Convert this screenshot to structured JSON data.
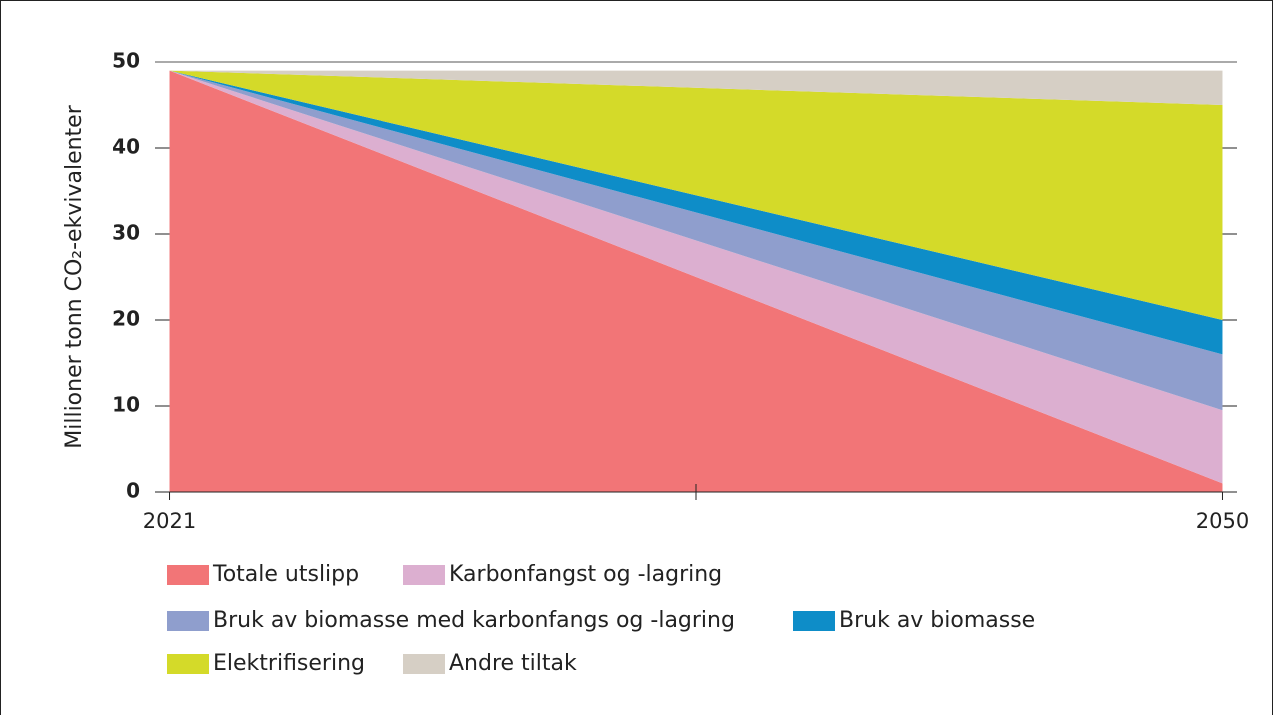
{
  "chart_data": {
    "type": "stacked_area",
    "y_label": "Millioner tonn CO₂-ekvivalenter",
    "x": [
      2021,
      2050
    ],
    "xlim": [
      2020.6,
      2050.4
    ],
    "xticks": [
      2021,
      2050
    ],
    "minor_xticks": [
      2035.5
    ],
    "ylim": [
      0,
      50
    ],
    "yticks": [
      0,
      10,
      20,
      30,
      40,
      50
    ],
    "series": [
      {
        "name": "Totale utslipp",
        "color": "#f27577",
        "values": [
          49,
          1
        ]
      },
      {
        "name": "Karbonfangst og -lagring",
        "color": "#dcafd0",
        "values": [
          0,
          8.5
        ]
      },
      {
        "name": "Bruk av biomasse med karbonfangs og -lagring",
        "color": "#8f9ecd",
        "values": [
          0,
          6.5
        ]
      },
      {
        "name": "Bruk av biomasse",
        "color": "#0e8dc8",
        "values": [
          0,
          4
        ]
      },
      {
        "name": "Elektrifisering",
        "color": "#d4da29",
        "values": [
          0,
          25
        ]
      },
      {
        "name": "Andre tiltak",
        "color": "#d6cfc5",
        "values": [
          0,
          4
        ]
      }
    ]
  }
}
